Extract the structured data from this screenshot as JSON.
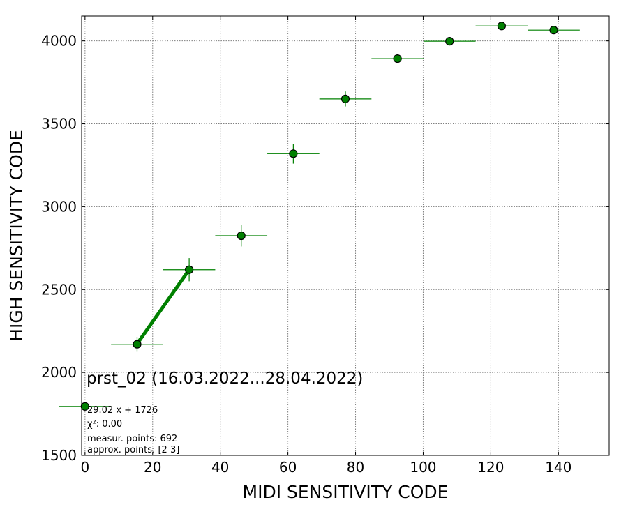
{
  "chart_data": {
    "type": "scatter",
    "title": "prst_02 (16.03.2022...28.04.2022)",
    "xlabel": "MIDI SENSITIVITY CODE",
    "ylabel": "HIGH SENSITIVITY CODE",
    "xlim": [
      -1,
      155
    ],
    "ylim": [
      1500,
      4150
    ],
    "xticks": [
      0,
      20,
      40,
      60,
      80,
      100,
      120,
      140
    ],
    "yticks": [
      1500,
      2000,
      2500,
      3000,
      3500,
      4000
    ],
    "grid": true,
    "colors": {
      "marker": "#008000",
      "edge": "#000000",
      "fit": "#008000"
    },
    "series": [
      {
        "x": [
          0,
          15.4,
          30.8,
          46.2,
          61.6,
          77.0,
          92.4,
          107.8,
          123.2,
          138.6
        ],
        "y": [
          1795,
          2170,
          2620,
          2825,
          3320,
          3650,
          3893,
          3998,
          4090,
          4065
        ],
        "xerr": [
          7.7,
          7.7,
          7.7,
          7.7,
          7.7,
          7.7,
          7.7,
          7.7,
          7.7,
          7.7
        ],
        "yerr": [
          10,
          45,
          70,
          65,
          60,
          45,
          28,
          18,
          15,
          15
        ]
      }
    ],
    "fit_line": {
      "x": [
        15.4,
        30.8
      ],
      "y": [
        2173,
        2620
      ]
    },
    "annotations": {
      "equation": "29.02 x + 1726",
      "chi2": "χ²: 0.00",
      "points": "measur. points: 692",
      "approx": "approx. points: [2 3]"
    }
  }
}
